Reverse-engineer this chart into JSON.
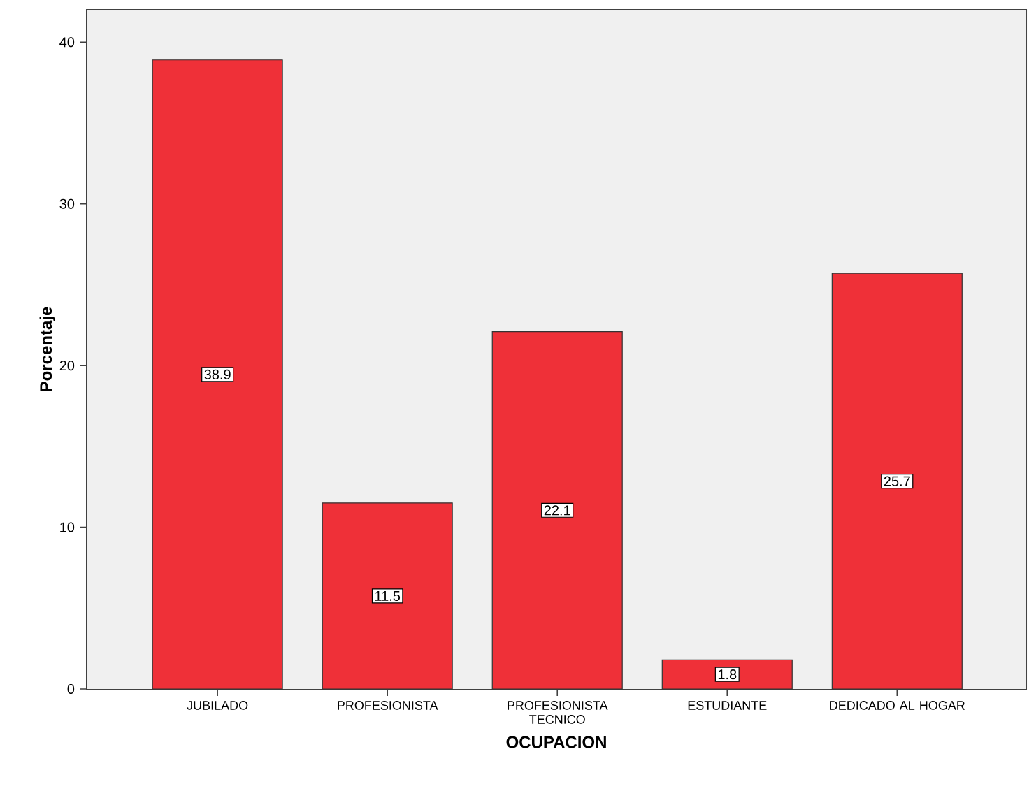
{
  "chart_data": {
    "type": "bar",
    "xlabel": "OCUPACION",
    "ylabel": "Porcentaje",
    "categories": [
      "JUBILADO",
      "PROFESIONISTA",
      "PROFESIONISTA TECNICO",
      "ESTUDIANTE",
      "DEDICADO AL HOGAR"
    ],
    "values": [
      38.9,
      11.5,
      22.1,
      1.8,
      25.7
    ],
    "color": "#ef3038",
    "ylim": [
      0,
      42
    ],
    "yticks": [
      0,
      10,
      20,
      30,
      40
    ],
    "data_labels": true
  }
}
